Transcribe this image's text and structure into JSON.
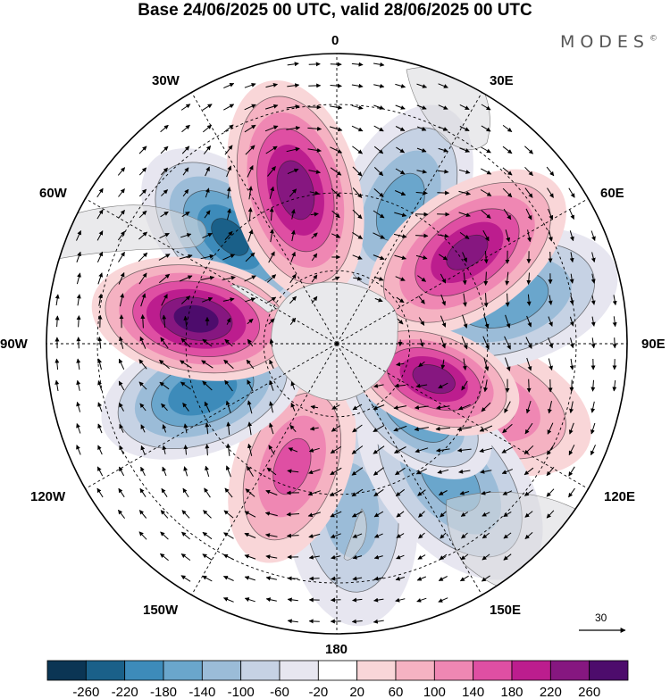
{
  "header": {
    "title": "Base 24/06/2025 00 UTC, valid 28/06/2025 00 UTC",
    "brand": "MODES",
    "brand_mark": "©"
  },
  "map": {
    "projection": "south-polar-stereographic",
    "longitude_labels": {
      "0": "0",
      "30E": "30E",
      "60E": "60E",
      "90E": "90E",
      "120E": "120E",
      "150E": "150E",
      "180": "180",
      "150W": "150W",
      "120W": "120W",
      "90W": "90W",
      "60W": "60W",
      "30W": "30W"
    },
    "field": "height anomaly with wind vectors",
    "anomaly_centers": [
      {
        "lon": -80,
        "lat": -52,
        "value": 270
      },
      {
        "lon": -45,
        "lat": -50,
        "value": -220
      },
      {
        "lon": -15,
        "lat": -48,
        "value": 240
      },
      {
        "lon": 25,
        "lat": -50,
        "value": -150
      },
      {
        "lon": 55,
        "lat": -48,
        "value": 220
      },
      {
        "lon": 75,
        "lat": -45,
        "value": -170
      },
      {
        "lon": 110,
        "lat": -62,
        "value": 230
      },
      {
        "lon": 112,
        "lat": -48,
        "value": 140
      },
      {
        "lon": 130,
        "lat": -62,
        "value": -190
      },
      {
        "lon": 140,
        "lat": -44,
        "value": -150
      },
      {
        "lon": -110,
        "lat": -52,
        "value": -210
      },
      {
        "lon": -160,
        "lat": -55,
        "value": 140
      },
      {
        "lon": 175,
        "lat": -46,
        "value": -110
      },
      {
        "lon": 10,
        "lat": -68,
        "value": 60
      },
      {
        "lon": -40,
        "lat": -68,
        "value": -60
      }
    ],
    "reference_vector": {
      "value": "30"
    }
  },
  "colorbar": {
    "levels": [
      "-260",
      "-220",
      "-180",
      "-140",
      "-100",
      "-60",
      "-20",
      "20",
      "60",
      "100",
      "140",
      "180",
      "220",
      "260"
    ],
    "colors": [
      "#0b3554",
      "#1a6089",
      "#3d8bba",
      "#6aa6cc",
      "#9bbcd8",
      "#c6d2e4",
      "#e7e6f0",
      "#ffffff",
      "#f9d6d8",
      "#f5b2c2",
      "#ef87b3",
      "#df4fa3",
      "#bc1d8e",
      "#861780",
      "#4d0c6c"
    ]
  }
}
